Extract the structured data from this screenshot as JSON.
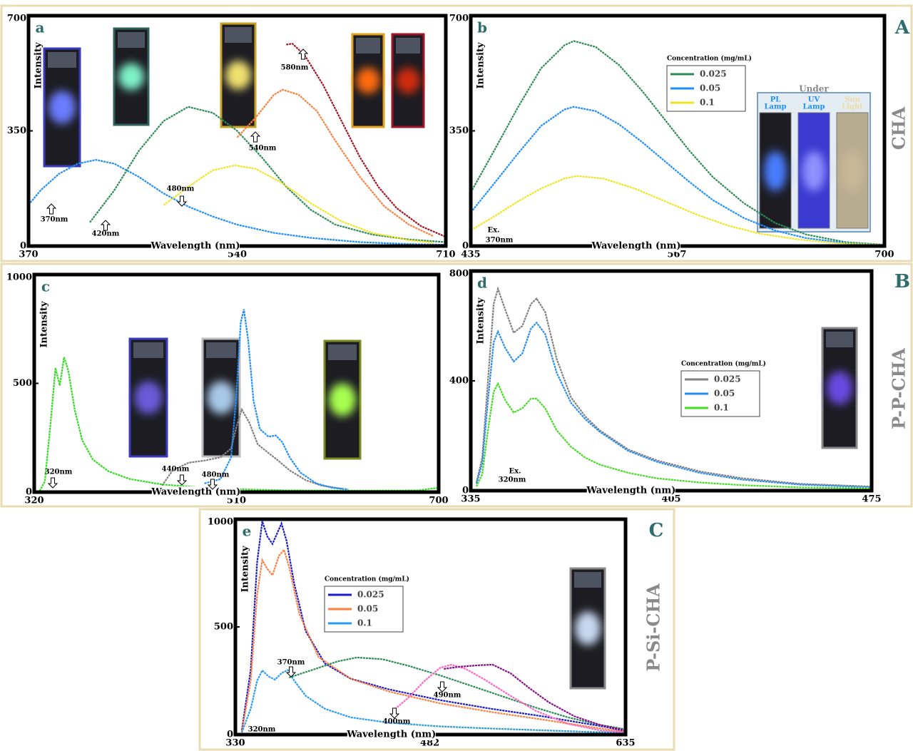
{
  "sections": [
    {
      "letter": "A",
      "label": "CHA"
    },
    {
      "letter": "B",
      "label": "P-P-CHA"
    },
    {
      "letter": "C",
      "label": "P-Si-CHA"
    }
  ],
  "chart_data": [
    {
      "type": "line",
      "panel": "a",
      "x_label": "Wavelength (nm)",
      "y_label": "Intensity",
      "xlim": [
        370,
        710
      ],
      "ylim": [
        0,
        700
      ],
      "xticks": [
        370,
        540,
        710
      ],
      "yticks": [
        0,
        350,
        700
      ],
      "annotations": [
        "370nm",
        "420nm",
        "480nm",
        "540nm",
        "580nm"
      ],
      "series": [
        {
          "color": "#1e8fff",
          "x": [
            370,
            380,
            395,
            410,
            425,
            440,
            460,
            480,
            500,
            520,
            540,
            570,
            600,
            640,
            680,
            710
          ],
          "values": [
            125,
            170,
            220,
            250,
            262,
            250,
            210,
            160,
            120,
            90,
            65,
            40,
            25,
            12,
            6,
            4
          ]
        },
        {
          "color": "#2e8b57",
          "x": [
            420,
            440,
            460,
            480,
            500,
            520,
            540,
            560,
            580,
            600,
            620,
            650,
            680,
            710
          ],
          "values": [
            72,
            170,
            290,
            380,
            423,
            405,
            350,
            270,
            180,
            110,
            65,
            35,
            20,
            12
          ]
        },
        {
          "color": "#f0e520",
          "x": [
            480,
            500,
            520,
            538,
            555,
            575,
            600,
            625,
            650,
            680,
            700
          ],
          "values": [
            124,
            180,
            230,
            245,
            235,
            195,
            130,
            75,
            40,
            18,
            10
          ]
        },
        {
          "color": "#ff7f3f",
          "x": [
            540,
            555,
            570,
            577,
            590,
            605,
            620,
            640,
            660,
            680,
            700
          ],
          "values": [
            330,
            390,
            460,
            475,
            460,
            410,
            320,
            210,
            120,
            65,
            30
          ]
        },
        {
          "color": "#a01528",
          "x": [
            580,
            585,
            595,
            610,
            625,
            640,
            655,
            670,
            690,
            710
          ],
          "values": [
            612,
            615,
            580,
            490,
            380,
            270,
            180,
            115,
            60,
            28
          ]
        }
      ]
    },
    {
      "type": "line",
      "panel": "b",
      "x_label": "Wavelength (nm)",
      "y_label": "Intensity",
      "xlim": [
        435,
        700
      ],
      "ylim": [
        0,
        700
      ],
      "xticks": [
        435,
        567,
        700
      ],
      "yticks": [
        0,
        350,
        700
      ],
      "annotations": [
        "Ex.",
        "370nm"
      ],
      "legend_title": "Concentration (mg/mL)",
      "inset_title": "Under",
      "inset_labels": [
        [
          "PL",
          "Lamp"
        ],
        [
          "UV",
          "Lamp"
        ],
        [
          "Sun",
          "Light"
        ]
      ],
      "series": [
        {
          "name": "0.025",
          "color": "#2e8b57",
          "x": [
            435,
            450,
            465,
            480,
            495,
            501,
            515,
            530,
            545,
            560,
            575,
            590,
            610,
            630,
            650,
            675,
            700
          ],
          "values": [
            163,
            290,
            420,
            540,
            610,
            623,
            605,
            550,
            470,
            380,
            290,
            210,
            130,
            70,
            35,
            12,
            4
          ]
        },
        {
          "name": "0.05",
          "color": "#1e8fff",
          "x": [
            435,
            450,
            465,
            480,
            495,
            501,
            515,
            530,
            545,
            560,
            575,
            590,
            610,
            630,
            650,
            675,
            700
          ],
          "values": [
            102,
            190,
            280,
            365,
            415,
            423,
            410,
            370,
            315,
            255,
            195,
            140,
            85,
            47,
            24,
            9,
            3
          ]
        },
        {
          "name": "0.1",
          "color": "#f0e520",
          "x": [
            435,
            450,
            465,
            480,
            495,
            503,
            520,
            540,
            560,
            580,
            600,
            620,
            645,
            670,
            700
          ],
          "values": [
            48,
            90,
            135,
            175,
            205,
            213,
            205,
            175,
            135,
            95,
            62,
            38,
            20,
            9,
            3
          ]
        }
      ]
    },
    {
      "type": "line",
      "panel": "c",
      "x_label": "Wavelength (nm)",
      "y_label": "Intensity",
      "xlim": [
        320,
        700
      ],
      "ylim": [
        0,
        1000
      ],
      "xticks": [
        320,
        510,
        700
      ],
      "yticks": [
        0,
        500,
        1000
      ],
      "annotations": [
        "320nm",
        "440nm",
        "480nm"
      ],
      "series": [
        {
          "color": "#33dd22",
          "x": [
            325,
            330,
            335,
            340,
            344,
            348,
            352,
            358,
            365,
            375,
            390,
            410,
            440,
            480,
            520,
            560,
            620,
            680,
            700
          ],
          "values": [
            5,
            50,
            300,
            570,
            490,
            620,
            560,
            380,
            240,
            150,
            95,
            60,
            35,
            20,
            12,
            8,
            7,
            8,
            20
          ]
        },
        {
          "color": "#808080",
          "x": [
            440,
            450,
            465,
            480,
            495,
            505,
            510,
            515,
            522,
            530,
            540,
            548,
            560,
            575,
            590,
            610
          ],
          "values": [
            30,
            100,
            135,
            145,
            160,
            200,
            300,
            380,
            320,
            220,
            180,
            150,
            100,
            55,
            30,
            15
          ]
        },
        {
          "color": "#1e8fff",
          "x": [
            480,
            495,
            505,
            510,
            514,
            517,
            521,
            526,
            532,
            540,
            547,
            553,
            560,
            570,
            585,
            600,
            615
          ],
          "values": [
            40,
            60,
            160,
            450,
            780,
            840,
            700,
            420,
            290,
            255,
            260,
            230,
            160,
            90,
            40,
            20,
            12
          ]
        }
      ]
    },
    {
      "type": "line",
      "panel": "d",
      "x_label": "Wavelength (nm)",
      "y_label": "Intensity",
      "xlim": [
        335,
        475
      ],
      "ylim": [
        0,
        800
      ],
      "xticks": [
        335,
        405,
        475
      ],
      "yticks": [
        0,
        400,
        800
      ],
      "annotations": [
        "Ex.",
        "320nm"
      ],
      "legend_title": "Concentration (mg/mL)",
      "series": [
        {
          "name": "0.025",
          "color": "#808080",
          "x": [
            337,
            339,
            341,
            343,
            344.5,
            347,
            350,
            353,
            356,
            358,
            361,
            365,
            370,
            375,
            380,
            390,
            400,
            415,
            430,
            450,
            475
          ],
          "values": [
            30,
            120,
            400,
            680,
            735,
            660,
            575,
            600,
            680,
            700,
            650,
            480,
            340,
            270,
            220,
            150,
            110,
            70,
            45,
            25,
            15
          ]
        },
        {
          "name": "0.05",
          "color": "#2a8cf0",
          "x": [
            337,
            339,
            341,
            343,
            344.5,
            347,
            350,
            353,
            356,
            358,
            361,
            365,
            370,
            375,
            380,
            390,
            400,
            415,
            430,
            450,
            475
          ],
          "values": [
            25,
            100,
            330,
            540,
            580,
            520,
            470,
            500,
            590,
            612,
            570,
            430,
            320,
            260,
            215,
            145,
            105,
            65,
            40,
            22,
            12
          ]
        },
        {
          "name": "0.1",
          "color": "#44dd22",
          "x": [
            337,
            339,
            341,
            343,
            344.5,
            347,
            350,
            353,
            356,
            358,
            361,
            365,
            370,
            375,
            380,
            390,
            400,
            415,
            430,
            450,
            475
          ],
          "values": [
            15,
            60,
            220,
            360,
            390,
            330,
            285,
            300,
            335,
            335,
            300,
            220,
            160,
            120,
            95,
            65,
            45,
            30,
            20,
            12,
            8
          ]
        }
      ]
    },
    {
      "type": "line",
      "panel": "e",
      "x_label": "Wavelength (nm)",
      "y_label": "Intensity",
      "xlim": [
        330,
        635
      ],
      "ylim": [
        0,
        1000
      ],
      "xticks": [
        330,
        482,
        635
      ],
      "yticks": [
        0,
        500,
        1000
      ],
      "annotations": [
        "320nm",
        "370nm",
        "400nm",
        "490nm"
      ],
      "legend_title": "Concentration (mg/mL)",
      "series": [
        {
          "name": "0.025",
          "color": "#1a1acc",
          "x": [
            335,
            342,
            347,
            351,
            355,
            359,
            366,
            370,
            376,
            385,
            400,
            420,
            450,
            490,
            530,
            570,
            600,
            620,
            635
          ],
          "values": [
            20,
            300,
            800,
            990,
            920,
            885,
            980,
            900,
            700,
            480,
            330,
            260,
            210,
            160,
            120,
            85,
            55,
            35,
            15
          ]
        },
        {
          "name": "0.05",
          "color": "#ff7f3f",
          "x": [
            335,
            342,
            347,
            351,
            355,
            359,
            364,
            368,
            372,
            380,
            395,
            420,
            450,
            490,
            530,
            570,
            600,
            620,
            635
          ],
          "values": [
            15,
            250,
            650,
            810,
            770,
            740,
            830,
            858,
            780,
            560,
            360,
            260,
            200,
            145,
            105,
            70,
            42,
            25,
            12
          ]
        },
        {
          "name": "0.1",
          "color": "#2a9cf0",
          "x": [
            335,
            342,
            347,
            351,
            356,
            361,
            366,
            371,
            376,
            385,
            400,
            420,
            450,
            490,
            530,
            570,
            610,
            635
          ],
          "values": [
            10,
            120,
            250,
            298,
            270,
            255,
            285,
            300,
            250,
            180,
            120,
            80,
            55,
            38,
            28,
            20,
            12,
            10
          ]
        },
        {
          "color": "#2e8b57",
          "x": [
            372,
            390,
            410,
            425,
            445,
            465,
            490,
            515,
            540,
            565,
            590,
            615,
            635
          ],
          "values": [
            265,
            300,
            340,
            358,
            350,
            320,
            275,
            225,
            175,
            125,
            80,
            45,
            25
          ]
        },
        {
          "color": "#ff66c4",
          "x": [
            453,
            465,
            478,
            490,
            499,
            510,
            525,
            545,
            565,
            590,
            615,
            635
          ],
          "values": [
            110,
            170,
            250,
            310,
            325,
            305,
            255,
            180,
            110,
            50,
            20,
            10
          ]
        },
        {
          "color": "#880e88",
          "x": [
            493,
            505,
            520,
            531,
            545,
            560,
            575,
            595,
            615,
            635
          ],
          "values": [
            305,
            315,
            322,
            325,
            285,
            215,
            150,
            85,
            45,
            20
          ]
        }
      ]
    }
  ]
}
